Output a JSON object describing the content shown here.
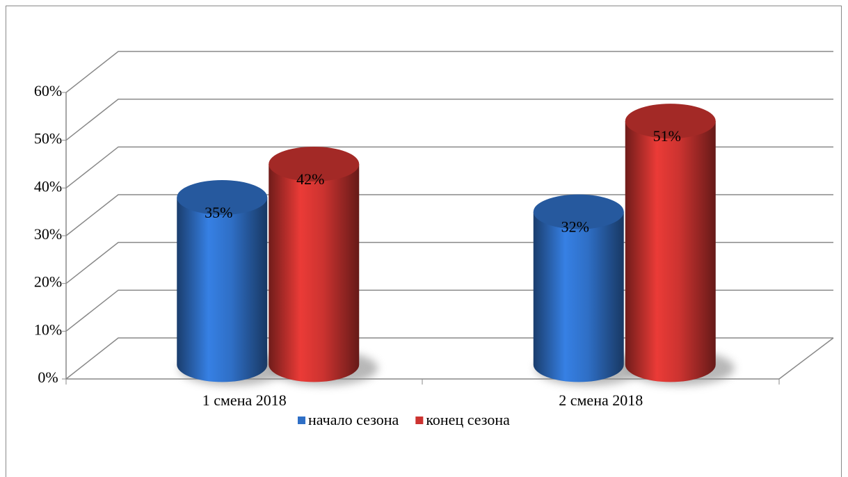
{
  "chart_data": {
    "type": "bar3d",
    "categories": [
      "1 смена 2018",
      "2 смена 2018"
    ],
    "series": [
      {
        "name": "начало сезона",
        "color": "#2f6fc6",
        "values": [
          35,
          32
        ],
        "value_labels": [
          "35%",
          "32%"
        ]
      },
      {
        "name": "конец сезона",
        "color": "#cc3330",
        "values": [
          42,
          51
        ],
        "value_labels": [
          "42%",
          "51%"
        ]
      }
    ],
    "ylim": [
      0,
      60
    ],
    "yticks": [
      {
        "value": 0,
        "label": "0%"
      },
      {
        "value": 10,
        "label": "10%"
      },
      {
        "value": 20,
        "label": "20%"
      },
      {
        "value": 30,
        "label": "30%"
      },
      {
        "value": 40,
        "label": "40%"
      },
      {
        "value": 50,
        "label": "50%"
      },
      {
        "value": 60,
        "label": "60%"
      }
    ],
    "grid": true,
    "legend": "bottom"
  }
}
